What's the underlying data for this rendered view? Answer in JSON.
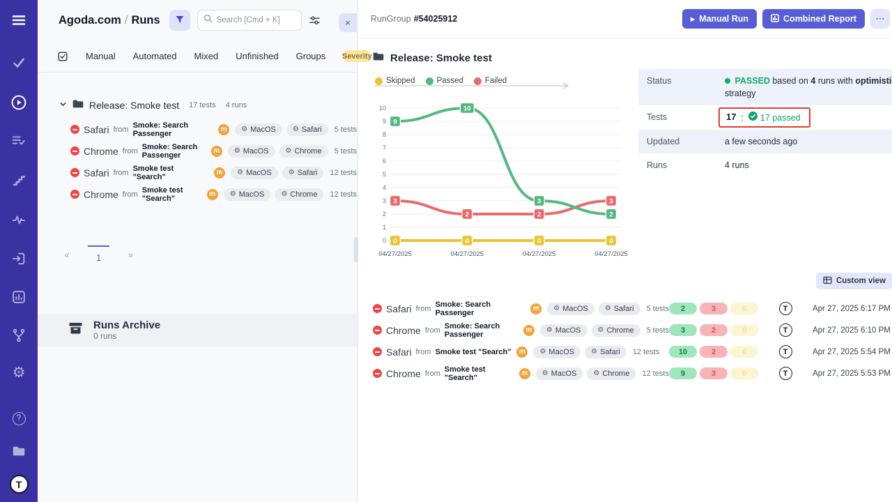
{
  "colors": {
    "accent": "#585dd6",
    "sidebar_bg": "#3832a2",
    "passed_green": "#0eac6e",
    "failed_red": "#ee4545",
    "annotation_red": "#e8372d",
    "severity_pill_bg": "#fbe5a0"
  },
  "sidebar": {
    "icons": [
      "menu-icon",
      "check-icon",
      "play-circle-icon",
      "list-check-icon",
      "steps-icon",
      "activity-icon",
      "import-icon",
      "report-icon",
      "branch-icon",
      "gear-icon",
      "help-icon",
      "folder-icon",
      "testomat-logo"
    ]
  },
  "left_panel": {
    "breadcrumb": {
      "project": "Agoda.com",
      "separator": "/",
      "page": "Runs"
    },
    "search": {
      "placeholder": "Search [Cmd + K]"
    },
    "tabs": [
      "Manual",
      "Automated",
      "Mixed",
      "Unfinished",
      "Groups"
    ],
    "severity_tab": "Severity",
    "close_label": "×",
    "tree": {
      "group": {
        "name": "Release: Smoke test",
        "tests": "17 tests",
        "runs": "4 runs"
      },
      "runs": [
        {
          "browser": "Safari",
          "from": "from",
          "source": "Smoke: Search Passenger",
          "manual_badge": "m",
          "env": [
            "MacOS",
            "Safari"
          ],
          "tests": "5 tests"
        },
        {
          "browser": "Chrome",
          "from": "from",
          "source": "Smoke: Search Passenger",
          "manual_badge": "m",
          "env": [
            "MacOS",
            "Chrome"
          ],
          "tests": "5 tests"
        },
        {
          "browser": "Safari",
          "from": "from",
          "source": "Smoke test \"Search\"",
          "manual_badge": "m",
          "env": [
            "MacOS",
            "Safari"
          ],
          "tests": "12 tests"
        },
        {
          "browser": "Chrome",
          "from": "from",
          "source": "Smoke test \"Search\"",
          "manual_badge": "m",
          "env": [
            "MacOS",
            "Chrome"
          ],
          "tests": "12 tests"
        }
      ]
    },
    "pagination": {
      "prev": "«",
      "page": "1",
      "next": "»"
    },
    "archive": {
      "title": "Runs Archive",
      "subtitle": "0 runs"
    }
  },
  "right_panel": {
    "header": {
      "group_label": "RunGroup",
      "group_id": "#54025912",
      "manual_run": "Manual Run",
      "combined_report": "Combined Report",
      "more": "⋯",
      "close": "×"
    },
    "title": "Release: Smoke test",
    "summary": {
      "status": {
        "label": "Status",
        "badge": "PASSED",
        "t1": "based on",
        "runs": "4",
        "t2": "runs with",
        "strategy": "optimistic",
        "t3": "strategy"
      },
      "tests": {
        "label": "Tests",
        "total": "17",
        "sep": ":",
        "passed": "17 passed"
      },
      "updated": {
        "label": "Updated",
        "value": "a few seconds ago"
      },
      "runs": {
        "label": "Runs",
        "value": "4 runs"
      }
    },
    "toolbar": {
      "custom_view": "Custom view"
    },
    "runs_table": {
      "rows": [
        {
          "browser": "Safari",
          "from": "from",
          "source": "Smoke: Search Passenger",
          "manual_badge": "m",
          "env": [
            "MacOS",
            "Safari"
          ],
          "tests": "5 tests",
          "passed": "2",
          "failed": "3",
          "skipped": "0",
          "date": "Apr 27, 2025 6:17 PM",
          "more": "⋯"
        },
        {
          "browser": "Chrome",
          "from": "from",
          "source": "Smoke: Search Passenger",
          "manual_badge": "m",
          "env": [
            "MacOS",
            "Chrome"
          ],
          "tests": "5 tests",
          "passed": "3",
          "failed": "2",
          "skipped": "0",
          "date": "Apr 27, 2025 6:10 PM",
          "more": "⋯"
        },
        {
          "browser": "Safari",
          "from": "from",
          "source": "Smoke test \"Search\"",
          "manual_badge": "m",
          "env": [
            "MacOS",
            "Safari"
          ],
          "tests": "12 tests",
          "passed": "10",
          "failed": "2",
          "skipped": "0",
          "date": "Apr 27, 2025 5:54 PM",
          "more": "⋯"
        },
        {
          "browser": "Chrome",
          "from": "from",
          "source": "Smoke test \"Search\"",
          "manual_badge": "m",
          "env": [
            "MacOS",
            "Chrome"
          ],
          "tests": "12 tests",
          "passed": "9",
          "failed": "3",
          "skipped": "0",
          "date": "Apr 27, 2025 5:53 PM",
          "more": "⋯"
        }
      ]
    }
  },
  "chart_data": {
    "type": "line",
    "title": "",
    "categories": [
      "04/27/2025",
      "04/27/2025",
      "04/27/2025",
      "04/27/2025"
    ],
    "series": [
      {
        "name": "Skipped",
        "color": "#e9c433",
        "values": [
          0,
          0,
          0,
          0
        ]
      },
      {
        "name": "Passed",
        "color": "#55b880",
        "values": [
          9,
          10,
          3,
          2
        ]
      },
      {
        "name": "Failed",
        "color": "#e96a6d",
        "values": [
          3,
          2,
          2,
          3
        ]
      }
    ],
    "xlabel": "",
    "ylabel": "",
    "ylim": [
      0,
      10
    ],
    "yticks": [
      0,
      1,
      2,
      3,
      4,
      5,
      6,
      7,
      8,
      9,
      10
    ],
    "grid": true,
    "legend_position": "top",
    "point_labels": true
  }
}
